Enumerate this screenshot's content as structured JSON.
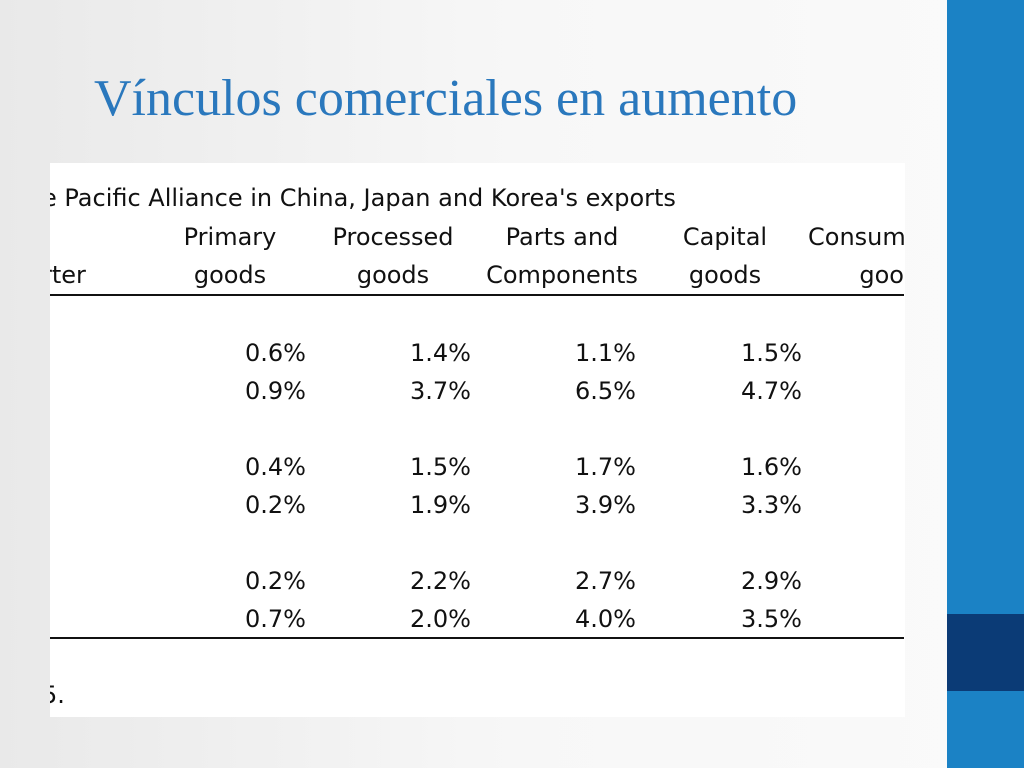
{
  "slide": {
    "title": "Vínculos comerciales en aumento",
    "colors": {
      "sidebar": "#1b82c5",
      "sidebar_accent": "#0b3b76",
      "title": "#2a78bd"
    }
  },
  "table": {
    "caption": "e Pacific Alliance in China, Japan and Korea's exports",
    "header_row_1": [
      "Primary",
      "Processed",
      "Parts and",
      "Capital",
      "Consum"
    ],
    "header_row_2": [
      "rter",
      "goods",
      "goods",
      "Components",
      "goods",
      "goo"
    ],
    "groups": [
      [
        [
          "0.6%",
          "1.4%",
          "1.1%",
          "1.5%"
        ],
        [
          "0.9%",
          "3.7%",
          "6.5%",
          "4.7%"
        ]
      ],
      [
        [
          "0.4%",
          "1.5%",
          "1.7%",
          "1.6%"
        ],
        [
          "0.2%",
          "1.9%",
          "3.9%",
          "3.3%"
        ]
      ],
      [
        [
          "0.2%",
          "2.2%",
          "2.7%",
          "2.9%"
        ],
        [
          "0.7%",
          "2.0%",
          "4.0%",
          "3.5%"
        ]
      ]
    ],
    "footnote": "5."
  }
}
